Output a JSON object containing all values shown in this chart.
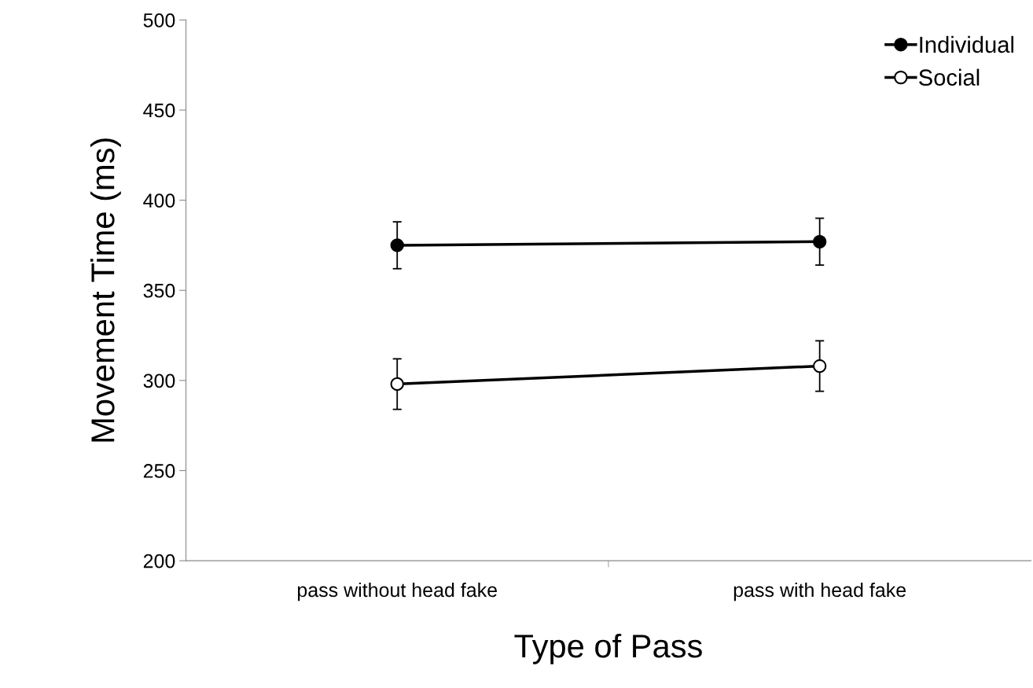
{
  "chart_data": {
    "type": "line",
    "xlabel": "Type of Pass",
    "ylabel": "Movement Time (ms)",
    "categories": [
      "pass without head fake",
      "pass with head fake"
    ],
    "series": [
      {
        "name": "Individual",
        "color": "#000000",
        "values": [
          375,
          377
        ],
        "errors": [
          13,
          13
        ],
        "marker": "circle"
      },
      {
        "name": "Social",
        "color": "#000000",
        "values": [
          298,
          308
        ],
        "errors": [
          14,
          14
        ],
        "marker": "circle"
      }
    ],
    "ylim": [
      200,
      500
    ],
    "yticks": [
      200,
      250,
      300,
      350,
      400,
      450,
      500
    ],
    "grid": false,
    "legend": "top right",
    "line_style": "solid"
  }
}
